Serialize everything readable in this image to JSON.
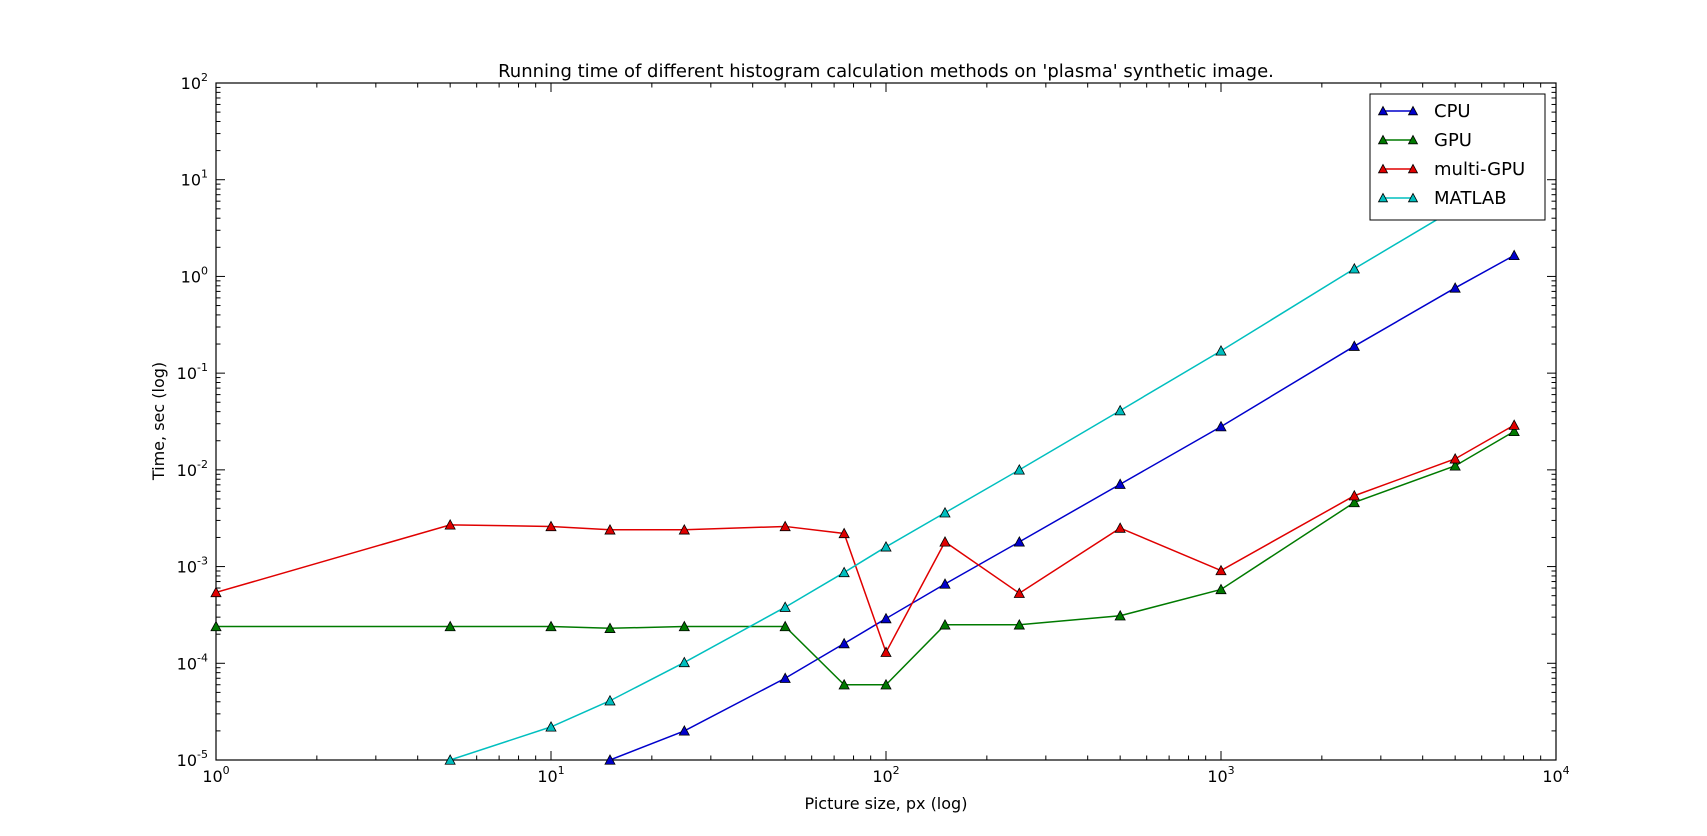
{
  "chart_data": {
    "type": "line",
    "title": "Running time of different histogram calculation methods on 'plasma' synthetic image.",
    "xlabel": "Picture size, px (log)",
    "ylabel": "Time, sec (log)",
    "xscale": "log",
    "yscale": "log",
    "xlim": [
      1,
      10000
    ],
    "ylim": [
      1e-05,
      100
    ],
    "x_ticks": [
      {
        "value": 1,
        "base": "10",
        "exp": "0"
      },
      {
        "value": 10,
        "base": "10",
        "exp": "1"
      },
      {
        "value": 100,
        "base": "10",
        "exp": "2"
      },
      {
        "value": 1000,
        "base": "10",
        "exp": "3"
      },
      {
        "value": 10000,
        "base": "10",
        "exp": "4"
      }
    ],
    "y_ticks": [
      {
        "value": 1e-05,
        "base": "10",
        "exp": "-5"
      },
      {
        "value": 0.0001,
        "base": "10",
        "exp": "-4"
      },
      {
        "value": 0.001,
        "base": "10",
        "exp": "-3"
      },
      {
        "value": 0.01,
        "base": "10",
        "exp": "-2"
      },
      {
        "value": 0.1,
        "base": "10",
        "exp": "-1"
      },
      {
        "value": 1,
        "base": "10",
        "exp": "0"
      },
      {
        "value": 10,
        "base": "10",
        "exp": "1"
      },
      {
        "value": 100,
        "base": "10",
        "exp": "2"
      }
    ],
    "grid": false,
    "legend_position": "top-right",
    "marker": "triangle-up",
    "series": [
      {
        "name": "CPU",
        "color": "#0000cc",
        "x": [
          15,
          25,
          50,
          75,
          100,
          150,
          250,
          500,
          1000,
          2500,
          5000,
          7500
        ],
        "values": [
          1e-05,
          2e-05,
          7e-05,
          0.00016,
          0.00029,
          0.00066,
          0.0018,
          0.0071,
          0.028,
          0.19,
          0.76,
          1.65
        ]
      },
      {
        "name": "GPU",
        "color": "#007a00",
        "x": [
          1,
          5,
          10,
          15,
          25,
          50,
          75,
          100,
          150,
          250,
          500,
          1000,
          2500,
          5000,
          7500
        ],
        "values": [
          0.00024,
          0.00024,
          0.00024,
          0.00023,
          0.00024,
          0.00024,
          6e-05,
          6e-05,
          0.00025,
          0.00025,
          0.00031,
          0.00058,
          0.0046,
          0.011,
          0.025
        ]
      },
      {
        "name": "multi-GPU",
        "color": "#e00000",
        "x": [
          1,
          5,
          10,
          15,
          25,
          50,
          75,
          100,
          150,
          250,
          500,
          1000,
          2500,
          5000,
          7500
        ],
        "values": [
          0.00054,
          0.0027,
          0.0026,
          0.0024,
          0.0024,
          0.0026,
          0.0022,
          0.00013,
          0.0018,
          0.00053,
          0.0025,
          0.00091,
          0.0054,
          0.013,
          0.029
        ]
      },
      {
        "name": "MATLAB",
        "color": "#00bfbf",
        "x": [
          5,
          10,
          15,
          25,
          50,
          75,
          100,
          150,
          250,
          500,
          1000,
          2500,
          5000
        ],
        "values": [
          1e-05,
          2.2e-05,
          4.1e-05,
          0.000102,
          0.00038,
          0.00087,
          0.0016,
          0.0036,
          0.01,
          0.041,
          0.17,
          1.2,
          5.0
        ]
      }
    ]
  }
}
